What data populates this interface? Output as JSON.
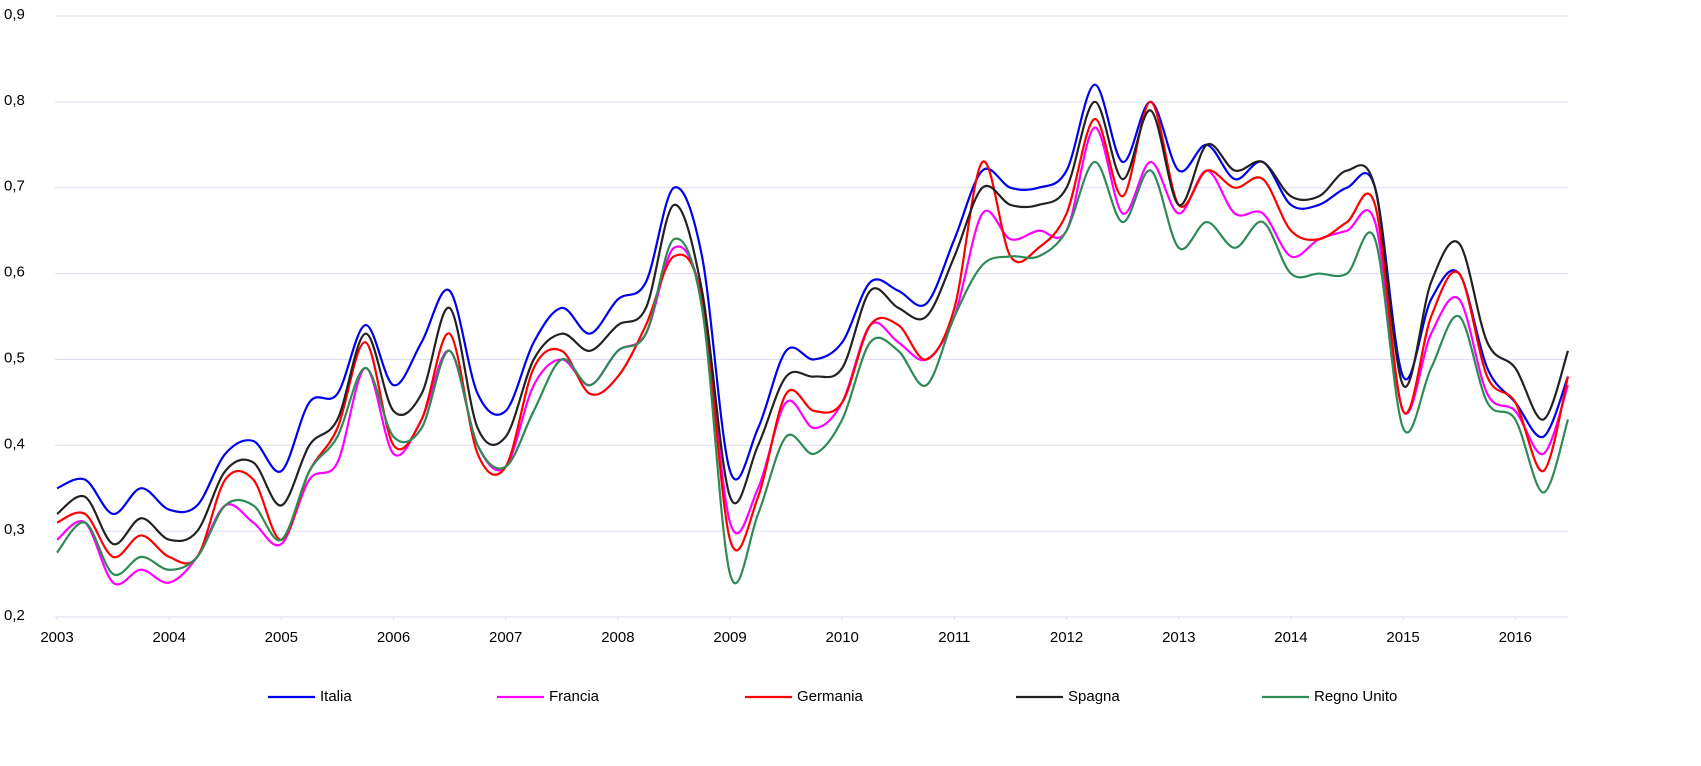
{
  "chart_data": {
    "type": "line",
    "x": [
      2003,
      2003.25,
      2003.5,
      2003.75,
      2004,
      2004.25,
      2004.5,
      2004.75,
      2005,
      2005.25,
      2005.5,
      2005.75,
      2006,
      2006.25,
      2006.5,
      2006.75,
      2007,
      2007.25,
      2007.5,
      2007.75,
      2008,
      2008.25,
      2008.5,
      2008.75,
      2009,
      2009.25,
      2009.5,
      2009.75,
      2010,
      2010.25,
      2010.5,
      2010.75,
      2011,
      2011.25,
      2011.5,
      2011.75,
      2012,
      2012.25,
      2012.5,
      2012.75,
      2013,
      2013.25,
      2013.5,
      2013.75,
      2014,
      2014.25,
      2014.5,
      2014.75,
      2015,
      2015.25,
      2015.5,
      2015.75,
      2016,
      2016.25,
      2016.47
    ],
    "series": [
      {
        "name": "Italia",
        "color": "#0000ee",
        "values": [
          0.35,
          0.36,
          0.32,
          0.35,
          0.325,
          0.33,
          0.39,
          0.405,
          0.37,
          0.45,
          0.46,
          0.54,
          0.47,
          0.52,
          0.58,
          0.46,
          0.44,
          0.52,
          0.56,
          0.53,
          0.57,
          0.59,
          0.7,
          0.62,
          0.37,
          0.42,
          0.51,
          0.5,
          0.52,
          0.59,
          0.58,
          0.565,
          0.64,
          0.72,
          0.7,
          0.7,
          0.72,
          0.82,
          0.73,
          0.8,
          0.72,
          0.75,
          0.71,
          0.73,
          0.68,
          0.68,
          0.7,
          0.7,
          0.48,
          0.57,
          0.6,
          0.49,
          0.45,
          0.41,
          0.48
        ]
      },
      {
        "name": "Francia",
        "color": "#ff00ff",
        "values": [
          0.29,
          0.31,
          0.24,
          0.255,
          0.24,
          0.27,
          0.33,
          0.31,
          0.285,
          0.36,
          0.38,
          0.49,
          0.39,
          0.43,
          0.51,
          0.4,
          0.375,
          0.47,
          0.5,
          0.47,
          0.51,
          0.53,
          0.63,
          0.57,
          0.31,
          0.35,
          0.45,
          0.42,
          0.45,
          0.54,
          0.52,
          0.5,
          0.55,
          0.67,
          0.64,
          0.65,
          0.65,
          0.77,
          0.67,
          0.73,
          0.67,
          0.72,
          0.67,
          0.67,
          0.62,
          0.64,
          0.65,
          0.66,
          0.44,
          0.53,
          0.57,
          0.46,
          0.44,
          0.39,
          0.47
        ]
      },
      {
        "name": "Germania",
        "color": "#ff0000",
        "values": [
          0.31,
          0.32,
          0.27,
          0.295,
          0.27,
          0.27,
          0.36,
          0.36,
          0.29,
          0.37,
          0.42,
          0.52,
          0.4,
          0.43,
          0.53,
          0.39,
          0.375,
          0.49,
          0.51,
          0.46,
          0.48,
          0.54,
          0.62,
          0.57,
          0.29,
          0.34,
          0.46,
          0.44,
          0.45,
          0.54,
          0.54,
          0.5,
          0.56,
          0.73,
          0.62,
          0.63,
          0.67,
          0.78,
          0.69,
          0.8,
          0.68,
          0.72,
          0.7,
          0.71,
          0.65,
          0.64,
          0.66,
          0.68,
          0.44,
          0.55,
          0.6,
          0.48,
          0.45,
          0.37,
          0.48
        ]
      },
      {
        "name": "Spagna",
        "color": "#222222",
        "values": [
          0.32,
          0.34,
          0.285,
          0.315,
          0.29,
          0.3,
          0.37,
          0.38,
          0.33,
          0.4,
          0.43,
          0.53,
          0.44,
          0.46,
          0.56,
          0.42,
          0.41,
          0.5,
          0.53,
          0.51,
          0.54,
          0.56,
          0.68,
          0.58,
          0.34,
          0.4,
          0.48,
          0.48,
          0.49,
          0.58,
          0.56,
          0.55,
          0.62,
          0.7,
          0.68,
          0.68,
          0.7,
          0.8,
          0.71,
          0.79,
          0.68,
          0.75,
          0.72,
          0.73,
          0.69,
          0.69,
          0.72,
          0.7,
          0.47,
          0.59,
          0.635,
          0.52,
          0.49,
          0.43,
          0.51
        ]
      },
      {
        "name": "Regno Unito",
        "color": "#2e8b57",
        "values": [
          0.275,
          0.31,
          0.25,
          0.27,
          0.255,
          0.27,
          0.33,
          0.33,
          0.29,
          0.37,
          0.41,
          0.49,
          0.41,
          0.42,
          0.51,
          0.4,
          0.375,
          0.44,
          0.5,
          0.47,
          0.51,
          0.53,
          0.64,
          0.56,
          0.25,
          0.32,
          0.41,
          0.39,
          0.43,
          0.52,
          0.51,
          0.47,
          0.55,
          0.61,
          0.62,
          0.62,
          0.65,
          0.73,
          0.66,
          0.72,
          0.63,
          0.66,
          0.63,
          0.66,
          0.6,
          0.6,
          0.6,
          0.64,
          0.42,
          0.49,
          0.55,
          0.45,
          0.43,
          0.345,
          0.43
        ]
      }
    ],
    "xlim": [
      2003,
      2016.47
    ],
    "xticks": [
      2003,
      2004,
      2005,
      2006,
      2007,
      2008,
      2009,
      2010,
      2011,
      2012,
      2013,
      2014,
      2015,
      2016
    ],
    "ylim": [
      0.2,
      0.9
    ],
    "yticks": [
      {
        "value": 0.2,
        "label": "0,2"
      },
      {
        "value": 0.3,
        "label": "0,3"
      },
      {
        "value": 0.4,
        "label": "0,4"
      },
      {
        "value": 0.5,
        "label": "0,5"
      },
      {
        "value": 0.6,
        "label": "0,6"
      },
      {
        "value": 0.7,
        "label": "0,7"
      },
      {
        "value": 0.8,
        "label": "0,8"
      },
      {
        "value": 0.9,
        "label": "0,9"
      }
    ],
    "grid": true,
    "legend": "bottom"
  }
}
